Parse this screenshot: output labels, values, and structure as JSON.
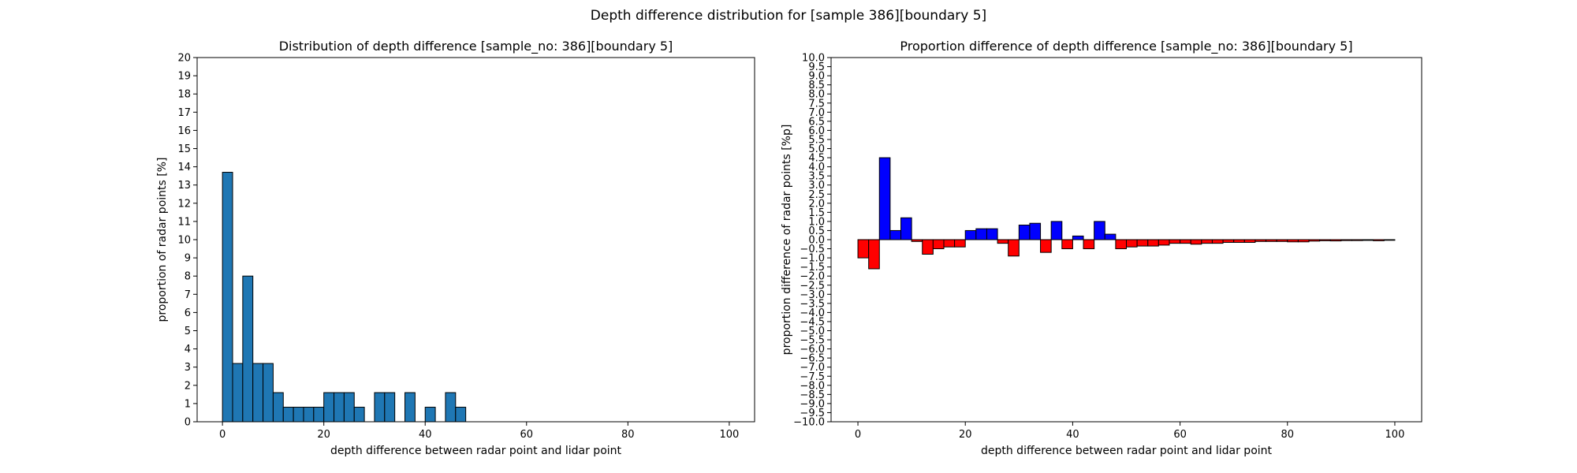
{
  "figure": {
    "suptitle": "Depth difference distribution for [sample 386][boundary 5]"
  },
  "chart_data": [
    {
      "type": "bar",
      "title": "Distribution of depth difference [sample_no: 386][boundary 5]",
      "xlabel": "depth difference between radar point and lidar point",
      "ylabel": "proportion of radar points [%]",
      "xlim": [
        -5,
        105
      ],
      "ylim": [
        0,
        20
      ],
      "xticks": [
        0,
        20,
        40,
        60,
        80,
        100
      ],
      "yticks": [
        0,
        1,
        2,
        3,
        4,
        5,
        6,
        7,
        8,
        9,
        10,
        11,
        12,
        13,
        14,
        15,
        16,
        17,
        18,
        19,
        20
      ],
      "bin_width": 2,
      "bar_color": "#1f77b4",
      "edge_color": "#000000",
      "x": [
        0,
        2,
        4,
        6,
        8,
        10,
        12,
        14,
        16,
        18,
        20,
        22,
        24,
        26,
        28,
        30,
        32,
        34,
        36,
        38,
        40,
        42,
        44,
        46
      ],
      "values": [
        13.7,
        3.2,
        8.0,
        3.2,
        3.2,
        1.6,
        0.8,
        0.8,
        0.8,
        0.8,
        1.6,
        1.6,
        1.6,
        0.8,
        0,
        1.6,
        1.6,
        0,
        1.6,
        0,
        0.8,
        0,
        1.6,
        0.8
      ]
    },
    {
      "type": "bar",
      "title": "Proportion difference of depth difference [sample_no: 386][boundary 5]",
      "xlabel": "depth difference between radar point and lidar point",
      "ylabel": "proportion difference of radar points [%p]",
      "xlim": [
        -5,
        105
      ],
      "ylim": [
        -10,
        10
      ],
      "xticks": [
        0,
        20,
        40,
        60,
        80,
        100
      ],
      "yticks": [
        -10.0,
        -9.5,
        -9.0,
        -8.5,
        -8.0,
        -7.5,
        -7.0,
        -6.5,
        -6.0,
        -5.5,
        -5.0,
        -4.5,
        -4.0,
        -3.5,
        -3.0,
        -2.5,
        -2.0,
        -1.5,
        -1.0,
        -0.5,
        0.0,
        0.5,
        1.0,
        1.5,
        2.0,
        2.5,
        3.0,
        3.5,
        4.0,
        4.5,
        5.0,
        5.5,
        6.0,
        6.5,
        7.0,
        7.5,
        8.0,
        8.5,
        9.0,
        9.5,
        10.0
      ],
      "bin_width": 2,
      "positive_color": "#0000ff",
      "negative_color": "#ff0000",
      "edge_color": "#000000",
      "x": [
        0,
        2,
        4,
        6,
        8,
        10,
        12,
        14,
        16,
        18,
        20,
        22,
        24,
        26,
        28,
        30,
        32,
        34,
        36,
        38,
        40,
        42,
        44,
        46,
        48,
        50,
        52,
        54,
        56,
        58,
        60,
        62,
        64,
        66,
        68,
        70,
        72,
        74,
        76,
        78,
        80,
        82,
        84,
        86,
        88,
        90,
        92,
        94,
        96,
        98
      ],
      "values": [
        -1.0,
        -1.6,
        4.5,
        0.5,
        1.2,
        -0.1,
        -0.8,
        -0.5,
        -0.4,
        -0.4,
        0.5,
        0.6,
        0.6,
        -0.2,
        -0.9,
        0.8,
        0.9,
        -0.7,
        1.0,
        -0.5,
        0.2,
        -0.5,
        1.0,
        0.3,
        -0.5,
        -0.4,
        -0.35,
        -0.35,
        -0.3,
        -0.2,
        -0.2,
        -0.25,
        -0.2,
        -0.2,
        -0.15,
        -0.15,
        -0.15,
        -0.1,
        -0.1,
        -0.1,
        -0.12,
        -0.12,
        -0.08,
        -0.06,
        -0.07,
        -0.05,
        -0.05,
        -0.04,
        -0.06,
        -0.03
      ]
    }
  ]
}
